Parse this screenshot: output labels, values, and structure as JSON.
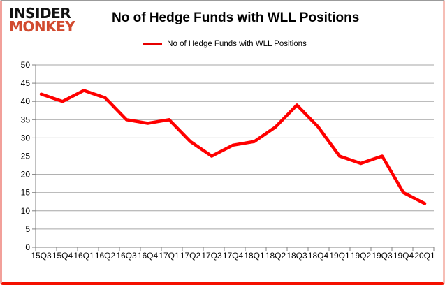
{
  "brand": {
    "line1": "INSIDER",
    "line2": "MONKEY",
    "line1_color": "#111111",
    "line2_color": "#d14a2f"
  },
  "title": "No of Hedge Funds with WLL Positions",
  "legend": {
    "label": "No of Hedge Funds with WLL Positions",
    "marker_color": "#e60000"
  },
  "colors": {
    "line": "#ff0000",
    "gridline": "#a6a6a6",
    "axis": "#808080",
    "text": "#000000",
    "frame_bottom": "#f41000",
    "frame_sides": "#f2a09a",
    "frame_top": "#9b9b9b"
  },
  "chart_data": {
    "type": "line",
    "title": "No of Hedge Funds with WLL Positions",
    "categories": [
      "15Q3",
      "15Q4",
      "16Q1",
      "16Q2",
      "16Q3",
      "16Q4",
      "17Q1",
      "17Q2",
      "17Q3",
      "17Q4",
      "18Q1",
      "18Q2",
      "18Q3",
      "18Q4",
      "19Q1",
      "19Q2",
      "19Q3",
      "19Q4",
      "20Q1"
    ],
    "series": [
      {
        "name": "No of Hedge Funds with WLL Positions",
        "color": "#ff0000",
        "values": [
          42,
          40,
          43,
          41,
          35,
          34,
          35,
          29,
          25,
          28,
          29,
          33,
          39,
          33,
          25,
          23,
          25,
          15,
          12
        ]
      }
    ],
    "ylim": [
      0,
      50
    ],
    "yticks": [
      0,
      5,
      10,
      15,
      20,
      25,
      30,
      35,
      40,
      45,
      50
    ],
    "grid": "horizontal",
    "legend_position": "top"
  }
}
